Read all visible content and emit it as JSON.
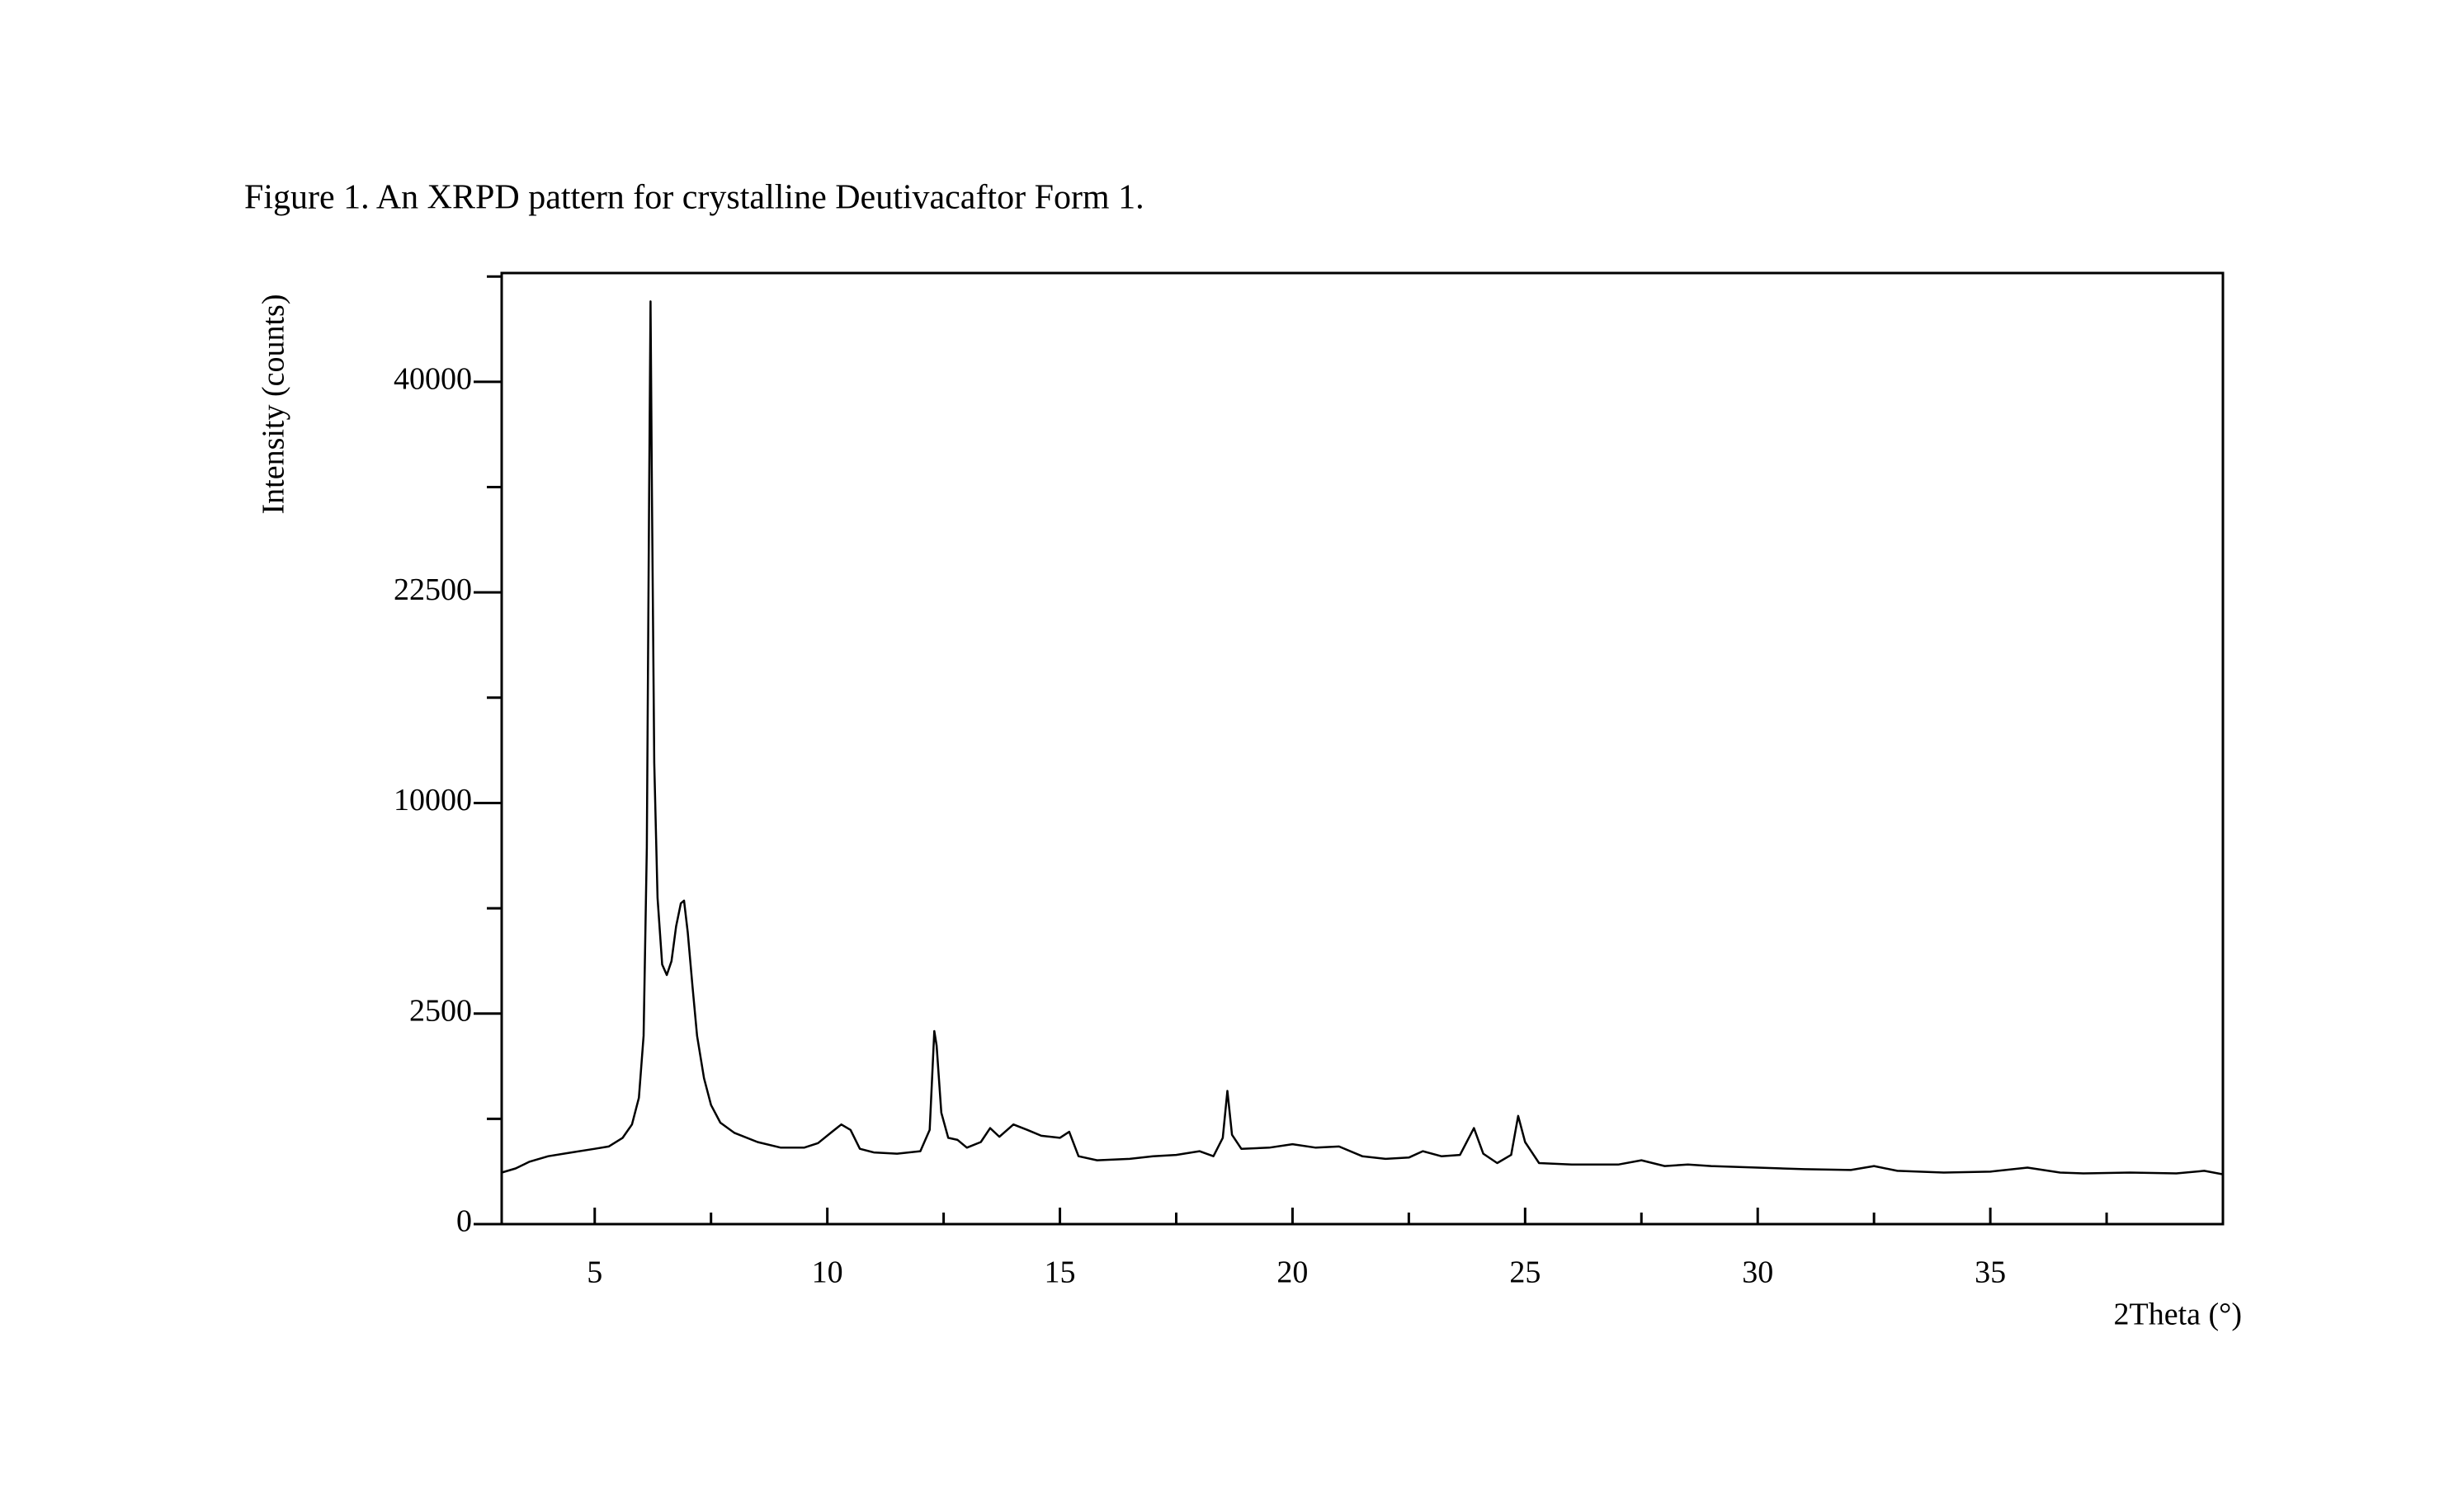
{
  "chart_data": {
    "type": "line",
    "title": "Figure 1. An XRPD pattern for crystalline Deutivacaftor Form 1.",
    "x_label": "2Theta (°)",
    "y_label": "Intensity (counts)",
    "yscale": "sqrt",
    "xlim": [
      3,
      40
    ],
    "ylim": [
      0,
      51000
    ],
    "xticks": [
      5,
      10,
      15,
      20,
      25,
      30,
      35
    ],
    "xminorticks": [
      7.5,
      12.5,
      17.5,
      22.5,
      27.5,
      32.5,
      37.5
    ],
    "yticks": [
      0,
      2500,
      10000,
      22500,
      40000
    ],
    "yminorticks": [
      625,
      5625,
      15625,
      30625,
      50625
    ],
    "grid": false,
    "series": [
      {
        "color": "#000000",
        "x": [
          3.0,
          3.3,
          3.6,
          4.0,
          4.5,
          5.0,
          5.3,
          5.6,
          5.8,
          5.95,
          6.05,
          6.12,
          6.17,
          6.2,
          6.23,
          6.28,
          6.35,
          6.45,
          6.55,
          6.65,
          6.75,
          6.85,
          6.92,
          7.0,
          7.1,
          7.2,
          7.35,
          7.5,
          7.7,
          8.0,
          8.5,
          9.0,
          9.5,
          9.8,
          10.1,
          10.3,
          10.5,
          10.7,
          11.0,
          11.5,
          12.0,
          12.2,
          12.3,
          12.35,
          12.45,
          12.6,
          12.8,
          13.0,
          13.3,
          13.5,
          13.7,
          14.0,
          14.3,
          14.6,
          15.0,
          15.2,
          15.4,
          15.8,
          16.5,
          17.0,
          17.5,
          18.0,
          18.3,
          18.5,
          18.6,
          18.7,
          18.9,
          19.5,
          20.0,
          20.5,
          21.0,
          21.5,
          22.0,
          22.5,
          22.8,
          23.2,
          23.6,
          23.9,
          24.1,
          24.4,
          24.7,
          24.85,
          25.0,
          25.3,
          26.0,
          27.0,
          27.5,
          28.0,
          28.5,
          29.0,
          30.0,
          31.0,
          32.0,
          32.5,
          33.0,
          34.0,
          35.0,
          35.8,
          36.5,
          37.0,
          38.0,
          39.0,
          39.6,
          40.0
        ],
        "values": [
          150,
          175,
          220,
          260,
          290,
          320,
          340,
          420,
          560,
          900,
          2000,
          8000,
          30000,
          48000,
          30000,
          12000,
          6000,
          3800,
          3500,
          3900,
          5000,
          5800,
          5900,
          4800,
          3200,
          2000,
          1200,
          800,
          580,
          470,
          380,
          330,
          330,
          370,
          480,
          560,
          500,
          320,
          290,
          280,
          300,
          500,
          2100,
          1800,
          700,
          420,
          400,
          330,
          380,
          520,
          430,
          560,
          500,
          440,
          420,
          480,
          260,
          230,
          240,
          260,
          270,
          300,
          260,
          420,
          1000,
          450,
          320,
          330,
          360,
          330,
          340,
          260,
          240,
          250,
          300,
          260,
          270,
          520,
          280,
          210,
          270,
          660,
          380,
          210,
          200,
          200,
          230,
          190,
          200,
          190,
          180,
          170,
          165,
          190,
          160,
          150,
          155,
          180,
          150,
          145,
          150,
          145,
          160,
          140
        ]
      }
    ]
  }
}
